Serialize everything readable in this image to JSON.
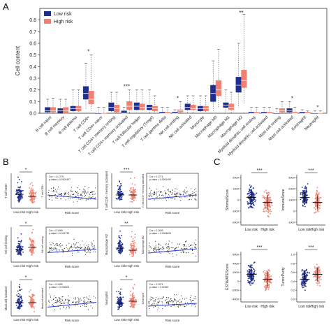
{
  "panels": {
    "a": "A",
    "b": "B",
    "c": "C"
  },
  "colors": {
    "low": "#1f2f8e",
    "high": "#f08070",
    "axis": "#333333",
    "fit": "#2a3fd6",
    "sig": "#000000"
  },
  "chart_data": [
    {
      "panel": "A",
      "type": "box",
      "ylabel": "Cell content",
      "ylim": [
        0,
        0.9
      ],
      "y_ticks": [
        "0.0",
        "0.1",
        "0.2",
        "0.3",
        "0.4",
        "0.5",
        "0.6",
        "0.7",
        "0.8"
      ],
      "legend": {
        "position": "top-left",
        "entries": [
          "Low risk",
          "High risk"
        ]
      },
      "categories": [
        "B cell naive",
        "B cell memory",
        "B cell plasma",
        "T cell CD8+",
        "T cell CD4+ naive",
        "T cell CD4+ memory resting",
        "T cell CD4+ memory activated",
        "T cell follicular helper",
        "T cell regulatory (Tregs)",
        "T cell gamma delta",
        "NK cell resting",
        "NK cell activated",
        "Monocyte",
        "Macrophage M0",
        "Macrophage M1",
        "Macrophage M2",
        "Myeloid dendritic cell resting",
        "Myeloid dendritic cell activated",
        "Mast cell resting",
        "Mast cell activated",
        "Eosinophil",
        "Neutrophil"
      ],
      "significance": [
        {
          "category": "T cell CD8+",
          "label": "*"
        },
        {
          "category": "T cell CD4+ memory activated",
          "label": "***"
        },
        {
          "category": "NK cell resting",
          "label": "*"
        },
        {
          "category": "Macrophage M2",
          "label": "**"
        },
        {
          "category": "Mast cell activated",
          "label": "*"
        },
        {
          "category": "Neutrophil",
          "label": "*"
        }
      ],
      "series": [
        {
          "name": "Low risk",
          "stats": [
            [
              0,
              0.01,
              0.02,
              0.05,
              0.12
            ],
            [
              0,
              0,
              0.02,
              0.04,
              0.12
            ],
            [
              0,
              0.02,
              0.04,
              0.06,
              0.2
            ],
            [
              0.03,
              0.12,
              0.17,
              0.23,
              0.43
            ],
            [
              0,
              0,
              0,
              0,
              0.05
            ],
            [
              0,
              0.02,
              0.05,
              0.09,
              0.18
            ],
            [
              0,
              0,
              0,
              0.02,
              0.05
            ],
            [
              0.01,
              0.03,
              0.06,
              0.09,
              0.2
            ],
            [
              0,
              0.03,
              0.05,
              0.07,
              0.2
            ],
            [
              0,
              0,
              0,
              0.01,
              0.05
            ],
            [
              0,
              0,
              0,
              0.01,
              0.03
            ],
            [
              0,
              0.03,
              0.05,
              0.08,
              0.15
            ],
            [
              0,
              0.02,
              0.04,
              0.06,
              0.15
            ],
            [
              0.02,
              0.1,
              0.17,
              0.24,
              0.45
            ],
            [
              0.01,
              0.05,
              0.07,
              0.09,
              0.2
            ],
            [
              0.05,
              0.18,
              0.24,
              0.31,
              0.6
            ],
            [
              0,
              0,
              0,
              0.01,
              0.05
            ],
            [
              0,
              0,
              0,
              0.01,
              0.05
            ],
            [
              0,
              0,
              0,
              0,
              0.04
            ],
            [
              0,
              0.01,
              0.02,
              0.04,
              0.1
            ],
            [
              0,
              0,
              0,
              0.01,
              0.03
            ],
            [
              0,
              0,
              0,
              0,
              0.02
            ]
          ]
        },
        {
          "name": "High risk",
          "stats": [
            [
              0,
              0.01,
              0.02,
              0.05,
              0.13
            ],
            [
              0,
              0,
              0.02,
              0.05,
              0.12
            ],
            [
              0,
              0.02,
              0.04,
              0.06,
              0.2
            ],
            [
              0.02,
              0.08,
              0.12,
              0.19,
              0.5
            ],
            [
              0,
              0,
              0,
              0,
              0.05
            ],
            [
              0,
              0.01,
              0.04,
              0.07,
              0.18
            ],
            [
              0,
              0.03,
              0.06,
              0.1,
              0.2
            ],
            [
              0.01,
              0.03,
              0.05,
              0.08,
              0.2
            ],
            [
              0,
              0.02,
              0.04,
              0.06,
              0.15
            ],
            [
              0,
              0,
              0,
              0.01,
              0.05
            ],
            [
              0,
              0.01,
              0.02,
              0.03,
              0.1
            ],
            [
              0,
              0.03,
              0.04,
              0.07,
              0.15
            ],
            [
              0,
              0.02,
              0.04,
              0.06,
              0.15
            ],
            [
              0.05,
              0.15,
              0.2,
              0.28,
              0.55
            ],
            [
              0,
              0.03,
              0.05,
              0.08,
              0.18
            ],
            [
              0.08,
              0.22,
              0.28,
              0.37,
              0.85
            ],
            [
              0,
              0,
              0,
              0.01,
              0.05
            ],
            [
              0,
              0,
              0,
              0.01,
              0.05
            ],
            [
              0,
              0.01,
              0.02,
              0.04,
              0.1
            ],
            [
              0,
              0,
              0,
              0.01,
              0.05
            ],
            [
              0,
              0,
              0,
              0.01,
              0.02
            ],
            [
              0,
              0,
              0,
              0,
              0.02
            ]
          ]
        }
      ]
    },
    {
      "panel": "B",
      "type": "scatter",
      "subplots": [
        {
          "cell": "T cell CD8+",
          "sig": "*",
          "ylabel": "T cell CD8+",
          "xlabel": "Risk score",
          "groups": [
            "Low risk",
            "High risk"
          ],
          "cor_text": "Cor = -0.1775",
          "p_text": "p-value = 0.0001437",
          "slope": -0.3
        },
        {
          "cell": "T cell CD4+ memory activated",
          "sig": "***",
          "ylabel": "T cell CD4+ memory activated",
          "xlabel": "Risk score",
          "groups": [
            "Low risk",
            "High risk"
          ],
          "cor_text": "Cor = 0.1771",
          "p_text": "p-value = 0.0001493",
          "slope": 0.3
        },
        {
          "cell": "NK cell resting",
          "sig": "*",
          "ylabel": "NK cell resting",
          "xlabel": "Risk score",
          "groups": [
            "Low risk",
            "High risk"
          ],
          "cor_text": "Cor = 0.1469",
          "p_text": "p-value = 0.001732",
          "slope": 0.25
        },
        {
          "cell": "Macrophage M2",
          "sig": "**",
          "ylabel": "Macrophage M2",
          "xlabel": "Risk score",
          "groups": [
            "Low risk",
            "High risk"
          ],
          "cor_text": "Cor = 0.1633",
          "p_text": "p-value = 0.0004824",
          "slope": 0.3
        },
        {
          "cell": "Mast cell activated",
          "sig": "*",
          "ylabel": "Mast cell activated",
          "xlabel": "Risk score",
          "groups": [
            "Low risk",
            "High risk"
          ],
          "cor_text": "Cor = 0.1409",
          "p_text": "p-value = 0.002604",
          "slope": 0.35
        },
        {
          "cell": "Neutrophil",
          "sig": "*",
          "ylabel": "Neutrophil",
          "xlabel": "Risk score",
          "groups": [
            "Low risk",
            "High risk"
          ],
          "cor_text": "Cor = 0.1071",
          "p_text": "p-value = 0.02262",
          "slope": 0.2
        }
      ]
    },
    {
      "panel": "C",
      "type": "scatter",
      "subplots": [
        {
          "ylabel": "StromalScore",
          "sig": "***",
          "groups": [
            "Low risk",
            "High risk"
          ],
          "y_ticks": [
            "2000",
            "1000",
            "0",
            "-1000",
            "-2000"
          ]
        },
        {
          "ylabel": "ImmuneScore",
          "sig": "***",
          "groups": [
            "Low risk",
            "High risk"
          ],
          "y_ticks": [
            "3000",
            "2000",
            "1000",
            "0",
            "-1000"
          ]
        },
        {
          "ylabel": "ESTIMATEScore",
          "sig": "***",
          "groups": [
            "Low risk",
            "High risk"
          ],
          "y_ticks": [
            "6000",
            "4000",
            "2000",
            "0",
            "-2000",
            "-4000"
          ]
        },
        {
          "ylabel": "TumorPurity",
          "sig": "***",
          "groups": [
            "Low risk",
            "High risk"
          ],
          "y_ticks": [
            "1.0",
            "0.8",
            "0.6",
            "0.4",
            "0.2",
            "0.0"
          ]
        }
      ]
    }
  ]
}
